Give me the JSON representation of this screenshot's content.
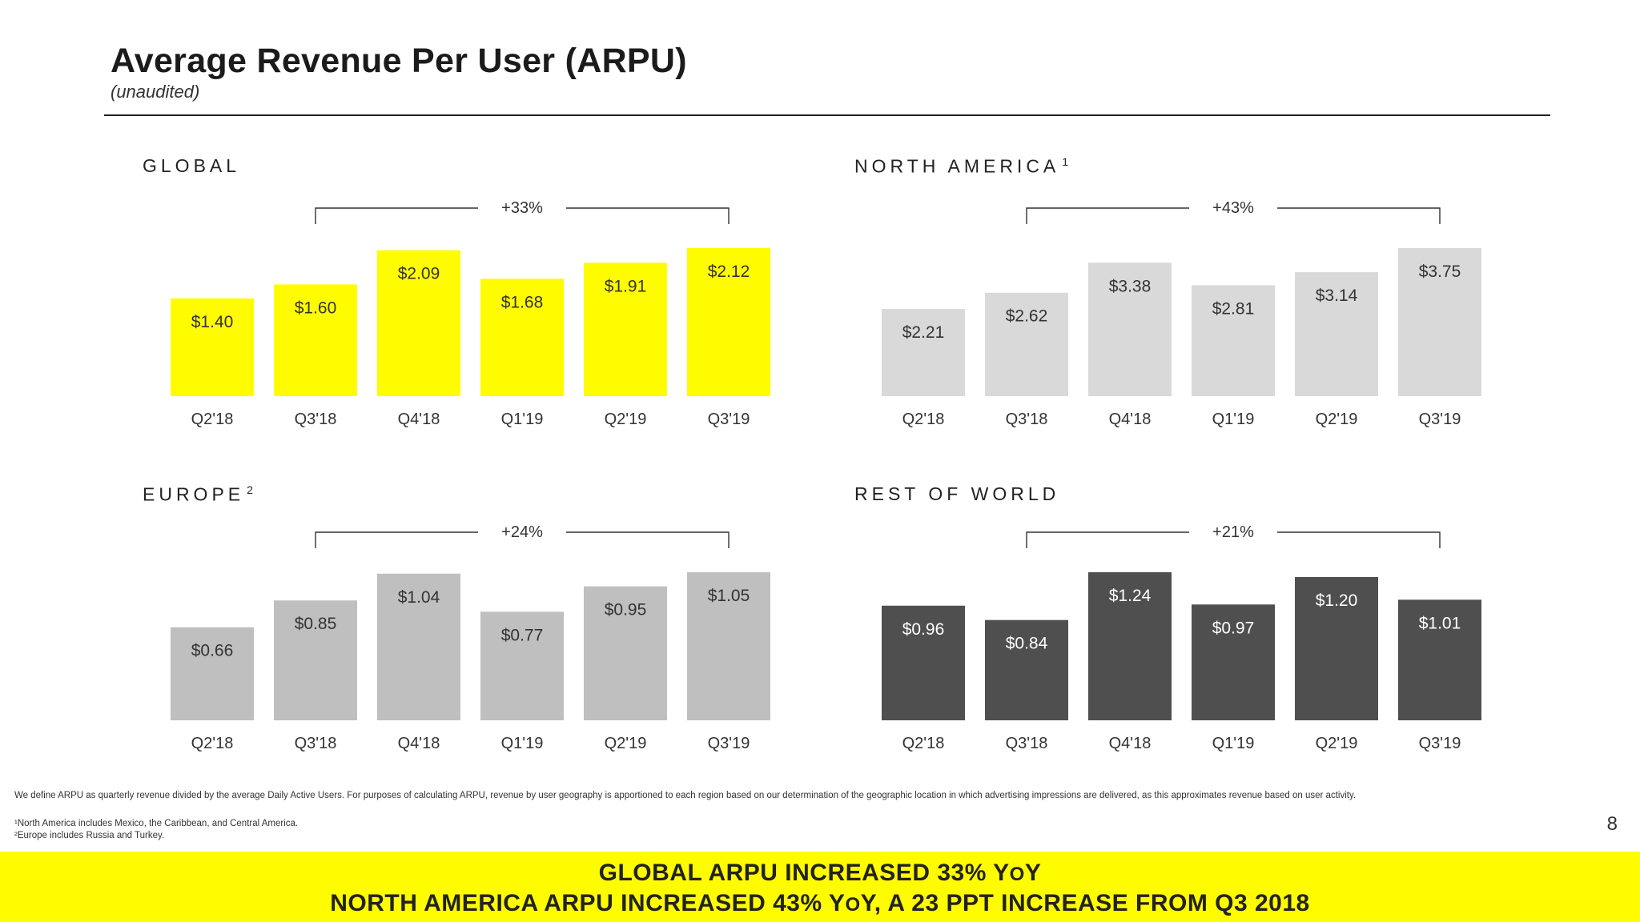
{
  "header": {
    "title": "Average Revenue Per User (ARPU)",
    "subtitle": "(unaudited)"
  },
  "colors": {
    "global": "#fffc00",
    "north_america": "#d9d9d9",
    "europe": "#bfbfbf",
    "rest_of_world": "#4f4f4f"
  },
  "panels": {
    "global": {
      "title": "GLOBAL",
      "sup": ""
    },
    "north_america": {
      "title": "NORTH AMERICA",
      "sup": "1"
    },
    "europe": {
      "title": "EUROPE",
      "sup": "2"
    },
    "rest_of_world": {
      "title": "REST OF WORLD",
      "sup": ""
    }
  },
  "chart_data": [
    {
      "type": "bar",
      "id": "global",
      "title": "GLOBAL",
      "categories": [
        "Q2'18",
        "Q3'18",
        "Q4'18",
        "Q1'19",
        "Q2'19",
        "Q3'19"
      ],
      "values": [
        1.4,
        1.6,
        2.09,
        1.68,
        1.91,
        2.12
      ],
      "labels": [
        "$1.40",
        "$1.60",
        "$2.09",
        "$1.68",
        "$1.91",
        "$2.12"
      ],
      "growth": {
        "label": "+33%",
        "from": "Q3'18",
        "to": "Q3'19"
      },
      "color": "#fffc00",
      "label_color": "#333333"
    },
    {
      "type": "bar",
      "id": "north_america",
      "title": "NORTH AMERICA",
      "categories": [
        "Q2'18",
        "Q3'18",
        "Q4'18",
        "Q1'19",
        "Q2'19",
        "Q3'19"
      ],
      "values": [
        2.21,
        2.62,
        3.38,
        2.81,
        3.14,
        3.75
      ],
      "labels": [
        "$2.21",
        "$2.62",
        "$3.38",
        "$2.81",
        "$3.14",
        "$3.75"
      ],
      "growth": {
        "label": "+43%",
        "from": "Q3'18",
        "to": "Q3'19"
      },
      "color": "#d9d9d9",
      "label_color": "#333333"
    },
    {
      "type": "bar",
      "id": "europe",
      "title": "EUROPE",
      "categories": [
        "Q2'18",
        "Q3'18",
        "Q4'18",
        "Q1'19",
        "Q2'19",
        "Q3'19"
      ],
      "values": [
        0.66,
        0.85,
        1.04,
        0.77,
        0.95,
        1.05
      ],
      "labels": [
        "$0.66",
        "$0.85",
        "$1.04",
        "$0.77",
        "$0.95",
        "$1.05"
      ],
      "growth": {
        "label": "+24%",
        "from": "Q3'18",
        "to": "Q3'19"
      },
      "color": "#bfbfbf",
      "label_color": "#333333"
    },
    {
      "type": "bar",
      "id": "rest_of_world",
      "title": "REST OF WORLD",
      "categories": [
        "Q2'18",
        "Q3'18",
        "Q4'18",
        "Q1'19",
        "Q2'19",
        "Q3'19"
      ],
      "values": [
        0.96,
        0.84,
        1.24,
        0.97,
        1.2,
        1.01
      ],
      "labels": [
        "$0.96",
        "$0.84",
        "$1.24",
        "$0.97",
        "$1.20",
        "$1.01"
      ],
      "growth": {
        "label": "+21%",
        "from": "Q3'18",
        "to": "Q3'19"
      },
      "color": "#4f4f4f",
      "label_color": "#ffffff"
    }
  ],
  "footnotes": {
    "definition": "We define ARPU as quarterly revenue divided by the average Daily Active Users. For purposes of calculating ARPU, revenue by user geography is apportioned to each region based on our determination of the geographic location in which advertising impressions are delivered, as this approximates revenue based on user activity.",
    "north_america": "¹North America includes Mexico, the Caribbean, and Central America.",
    "europe": "²Europe includes Russia and Turkey."
  },
  "page_number": "8",
  "banner": {
    "line1_a": "GLOBAL ARPU INCREASED 33% Y",
    "line1_b": "O",
    "line1_c": "Y",
    "line2_a": "NORTH AMERICA ARPU INCREASED 43% Y",
    "line2_b": "O",
    "line2_c": "Y, A 23 PPT INCREASE FROM Q3 2018"
  }
}
